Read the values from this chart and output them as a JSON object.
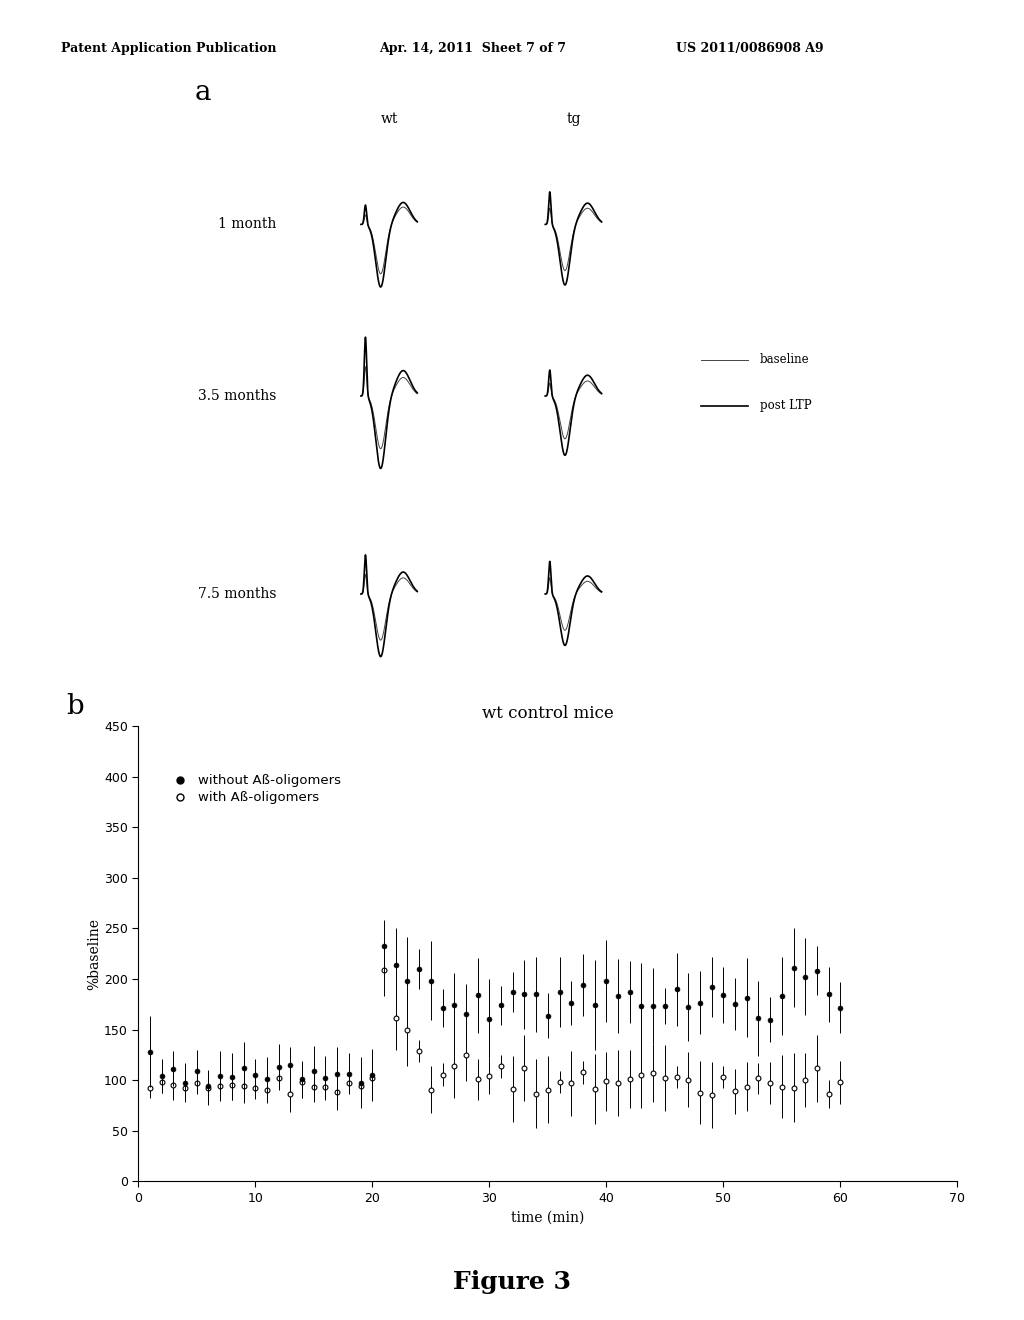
{
  "header_left": "Patent Application Publication",
  "header_mid": "Apr. 14, 2011  Sheet 7 of 7",
  "header_right": "US 2011/0086908 A9",
  "panel_a_label": "a",
  "panel_b_label": "b",
  "row_labels": [
    "1 month",
    "3.5 months",
    "7.5 months"
  ],
  "col_labels": [
    "wt",
    "tg"
  ],
  "legend_labels": [
    "baseline",
    "post LTP"
  ],
  "plot_title": "wt control mice",
  "xlabel": "time (min)",
  "ylabel": "%baseline",
  "legend_series": [
    "without Aß-oligomers",
    "with Aß-oligomers"
  ],
  "ylim": [
    0,
    450
  ],
  "xlim": [
    0,
    70
  ],
  "yticks": [
    0,
    50,
    100,
    150,
    200,
    250,
    300,
    350,
    400,
    450
  ],
  "xticks": [
    0,
    10,
    20,
    30,
    40,
    50,
    60,
    70
  ],
  "figure_label": "Figure 3",
  "bg_color": "#ffffff",
  "text_color": "#000000"
}
